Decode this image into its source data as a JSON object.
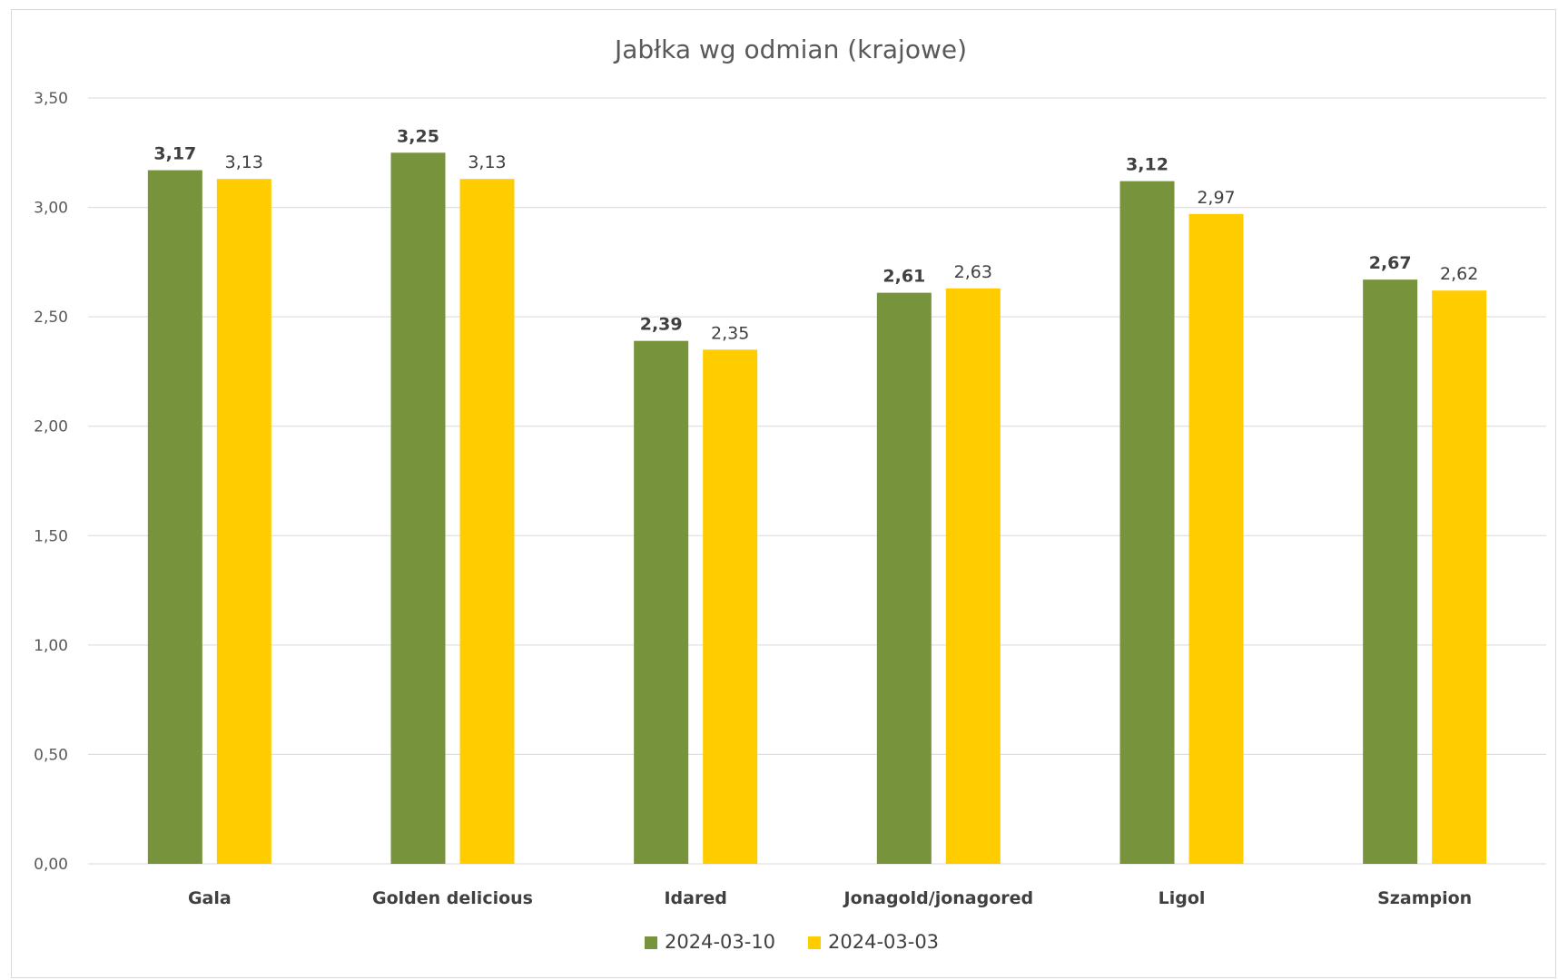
{
  "chart_data": {
    "type": "bar",
    "title": "Jabłka wg odmian (krajowe)",
    "categories": [
      "Gala",
      "Golden delicious",
      "Idared",
      "Jonagold/jonagored",
      "Ligol",
      "Szampion"
    ],
    "series": [
      {
        "name": "2024-03-10",
        "color": "#77933c",
        "values": [
          3.17,
          3.25,
          2.39,
          2.61,
          3.12,
          2.67
        ],
        "labels": [
          "3,17",
          "3,25",
          "2,39",
          "2,61",
          "3,12",
          "2,67"
        ]
      },
      {
        "name": "2024-03-03",
        "color": "#ffcc00",
        "values": [
          3.13,
          3.13,
          2.35,
          2.63,
          2.97,
          2.62
        ],
        "labels": [
          "3,13",
          "3,13",
          "2,35",
          "2,63",
          "2,97",
          "2,62"
        ]
      }
    ],
    "ylim": [
      0,
      3.5
    ],
    "yticks": [
      0,
      0.5,
      1,
      1.5,
      2,
      2.5,
      3,
      3.5
    ],
    "ytick_labels": [
      "0,00",
      "0,50",
      "1,00",
      "1,50",
      "2,00",
      "2,50",
      "3,00",
      "3,50"
    ],
    "grid": true,
    "legend_position": "bottom"
  }
}
